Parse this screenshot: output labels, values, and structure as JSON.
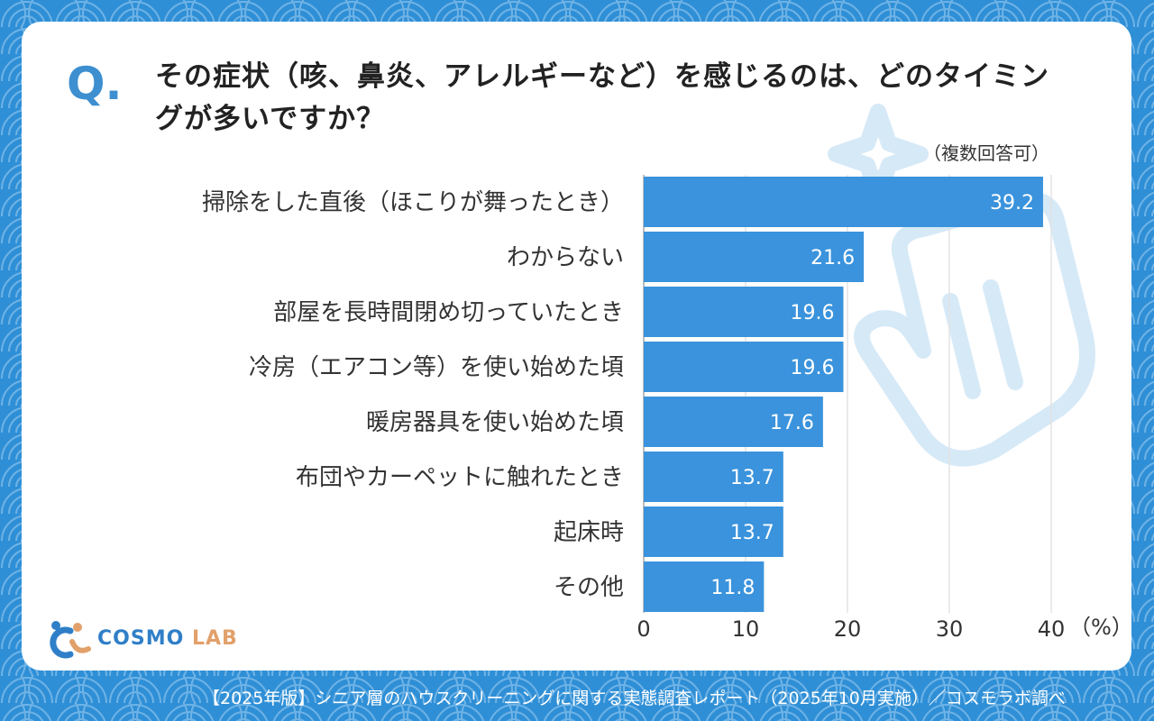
{
  "question": {
    "prefix": "Q.",
    "text": "その症状（咳、鼻炎、アレルギーなど）を感じるのは、どのタイミングが多いですか？",
    "note": "（複数回答可）"
  },
  "chart_data": {
    "type": "bar",
    "orientation": "horizontal",
    "categories": [
      "掃除をした直後（ほこりが舞ったとき）",
      "わからない",
      "部屋を長時間閉め切っていたとき",
      "冷房（エアコン等）を使い始めた頃",
      "暖房器具を使い始めた頃",
      "布団やカーペットに触れたとき",
      "起床時",
      "その他"
    ],
    "values": [
      39.2,
      21.6,
      19.6,
      19.6,
      17.6,
      13.7,
      13.7,
      11.8
    ],
    "value_labels": [
      "39.2",
      "21.6",
      "19.6",
      "19.6",
      "17.6",
      "13.7",
      "13.7",
      "11.8"
    ],
    "xlim": [
      0,
      40
    ],
    "xticks": [
      "0",
      "10",
      "20",
      "30",
      "40"
    ],
    "xunit": "（%）",
    "grid": true,
    "bar_color": "#3a93dc"
  },
  "logo": {
    "main": "COSMO",
    "sub": "LAB"
  },
  "footer": "【2025年版】シニア層のハウスクリーニングに関する実態調査レポート（2025年10月実施）／コスモラボ調べ",
  "colors": {
    "background": "#2f8fd6",
    "accent": "#3d8fd0",
    "logo_orange": "#e2a06a"
  }
}
